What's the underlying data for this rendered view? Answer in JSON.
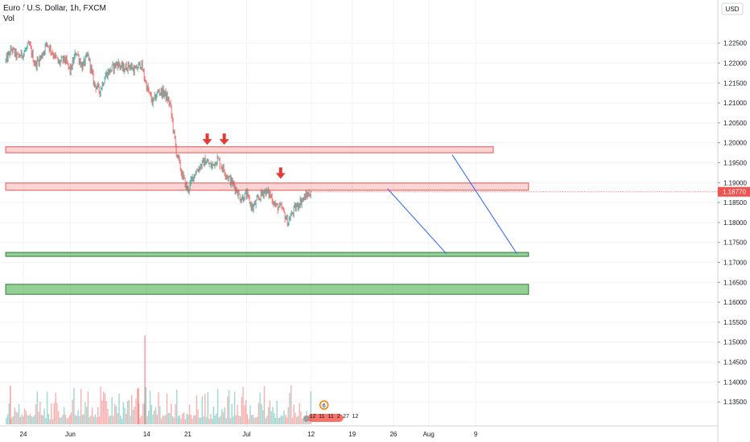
{
  "header": {
    "symbol_title": "Euro / U.S. Dollar, 1h, FXCM",
    "volume_label": "Vol"
  },
  "currency_button": "USD",
  "last_price": {
    "label": "1.18770",
    "value": 1.1877,
    "color": "#ef5350"
  },
  "chart_data": {
    "type": "candlestick",
    "title": "Euro / U.S. Dollar, 1h, FXCM",
    "y_axis": {
      "range": [
        1.131,
        1.234
      ],
      "ticks": [
        1.135,
        1.14,
        1.145,
        1.15,
        1.155,
        1.16,
        1.165,
        1.17,
        1.175,
        1.18,
        1.185,
        1.19,
        1.195,
        1.2,
        1.205,
        1.21,
        1.215,
        1.22,
        1.225
      ],
      "tick_labels": [
        "1.13500",
        "1.14000",
        "1.14500",
        "1.15000",
        "1.15500",
        "1.16000",
        "1.16500",
        "1.17000",
        "1.17500",
        "1.18000",
        "1.18500",
        "1.19000",
        "1.19500",
        "1.20000",
        "1.20500",
        "1.21000",
        "1.21500",
        "1.22000",
        "1.22500"
      ]
    },
    "x_axis": {
      "ticks": [
        {
          "label": "24",
          "day": 0
        },
        {
          "label": "Jun",
          "day": 8
        },
        {
          "label": "14",
          "day": 21
        },
        {
          "label": "21",
          "day": 28
        },
        {
          "label": "Jul",
          "day": 38
        },
        {
          "label": "12",
          "day": 49
        },
        {
          "label": "19",
          "day": 56
        },
        {
          "label": "26",
          "day": 63
        },
        {
          "label": "Aug",
          "day": 69
        },
        {
          "label": "9",
          "day": 77
        }
      ]
    },
    "price_path": [
      [
        -3,
        1.2205
      ],
      [
        -2,
        1.2235
      ],
      [
        -1,
        1.2215
      ],
      [
        0,
        1.2225
      ],
      [
        1,
        1.2245
      ],
      [
        2,
        1.2195
      ],
      [
        3,
        1.2215
      ],
      [
        4,
        1.225
      ],
      [
        5,
        1.2225
      ],
      [
        6,
        1.22
      ],
      [
        7,
        1.221
      ],
      [
        8,
        1.218
      ],
      [
        9,
        1.223
      ],
      [
        10,
        1.219
      ],
      [
        11,
        1.222
      ],
      [
        12,
        1.215
      ],
      [
        13,
        1.213
      ],
      [
        14,
        1.217
      ],
      [
        15,
        1.2185
      ],
      [
        16,
        1.22
      ],
      [
        17,
        1.2185
      ],
      [
        18,
        1.2195
      ],
      [
        19,
        1.218
      ],
      [
        20,
        1.22
      ],
      [
        21,
        1.214
      ],
      [
        22,
        1.21
      ],
      [
        23,
        1.213
      ],
      [
        24,
        1.2125
      ],
      [
        25,
        1.2095
      ],
      [
        26,
        1.198
      ],
      [
        27,
        1.192
      ],
      [
        28,
        1.188
      ],
      [
        29,
        1.192
      ],
      [
        30,
        1.194
      ],
      [
        31,
        1.1955
      ],
      [
        32,
        1.194
      ],
      [
        33,
        1.196
      ],
      [
        34,
        1.1935
      ],
      [
        35,
        1.191
      ],
      [
        36,
        1.189
      ],
      [
        37,
        1.186
      ],
      [
        38,
        1.187
      ],
      [
        39,
        1.1835
      ],
      [
        40,
        1.186
      ],
      [
        41,
        1.188
      ],
      [
        42,
        1.187
      ],
      [
        43,
        1.184
      ],
      [
        44,
        1.1835
      ],
      [
        45,
        1.18
      ],
      [
        46,
        1.183
      ],
      [
        47,
        1.185
      ],
      [
        48,
        1.1865
      ],
      [
        49,
        1.1877
      ]
    ],
    "volume_spikes": [
      {
        "day": 20.6,
        "volume": 0.85
      },
      {
        "day": 19.5,
        "volume": 0.35
      },
      {
        "day": -2.3,
        "volume": 0.37
      }
    ],
    "resistance_zones": [
      {
        "low": 1.1975,
        "high": 1.199,
        "from_day": -3,
        "to_day": 80,
        "color": "#ef5350"
      },
      {
        "low": 1.1881,
        "high": 1.1899,
        "from_day": -3,
        "to_day": 86,
        "color": "#ef5350"
      }
    ],
    "support_zones": [
      {
        "low": 1.1715,
        "high": 1.1725,
        "from_day": -3,
        "to_day": 86,
        "color": "#4caf50"
      },
      {
        "low": 1.162,
        "high": 1.1645,
        "from_day": -3,
        "to_day": 86,
        "color": "#4caf50"
      }
    ],
    "projection_lines": [
      {
        "from": [
          62,
          1.1885
        ],
        "to": [
          72,
          1.1722
        ],
        "color": "#2962ff"
      },
      {
        "from": [
          73,
          1.197
        ],
        "to": [
          84,
          1.1722
        ],
        "color": "#2962ff"
      }
    ],
    "arrows": [
      {
        "day": 31.3,
        "price": 1.1995,
        "color": "#e53935"
      },
      {
        "day": 34.2,
        "price": 1.1995,
        "color": "#e53935"
      },
      {
        "day": 43.8,
        "price": 1.191,
        "color": "#e53935"
      }
    ],
    "event_markers": [
      "12",
      "11",
      "11",
      "2",
      "27",
      "12"
    ],
    "event_badge": "6"
  }
}
